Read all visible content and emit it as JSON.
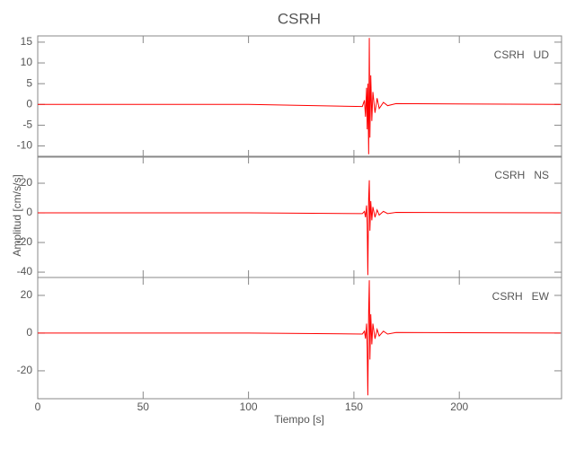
{
  "figure": {
    "title": "CSRH",
    "xlabel": "Tiempo [s]",
    "ylabel": "Amplitud [cm/s/s]",
    "xlim": [
      0,
      248.5
    ],
    "xticks": [
      0,
      50,
      100,
      150,
      200
    ]
  },
  "chart_data": [
    {
      "type": "line",
      "label": "CSRH   UD",
      "x": [
        0,
        100,
        154,
        155,
        155.5,
        156,
        156.3,
        156.6,
        157,
        157.3,
        157.6,
        158,
        158.5,
        159,
        160,
        161,
        162,
        164,
        166,
        170,
        248
      ],
      "series": [
        {
          "color": "#ff0000",
          "values": [
            0,
            0,
            -0.5,
            1,
            -3,
            4,
            -6,
            5,
            -12,
            16,
            -8,
            7,
            -4,
            3,
            -2,
            1.5,
            -1,
            0.5,
            -0.3,
            0.2,
            0
          ]
        }
      ],
      "ylim": [
        -12.7,
        16.5
      ],
      "yticks": [
        -10,
        -5,
        0,
        5,
        10,
        15
      ]
    },
    {
      "type": "line",
      "label": "CSRH   NS",
      "x": [
        0,
        100,
        154,
        155,
        155.5,
        156,
        156.3,
        156.6,
        157,
        157.3,
        157.6,
        158,
        158.5,
        159,
        160,
        161,
        162,
        164,
        166,
        170,
        248
      ],
      "series": [
        {
          "color": "#ff0000",
          "values": [
            0,
            0,
            -0.5,
            1,
            -3,
            5,
            -8,
            -42,
            10,
            22,
            -12,
            8,
            -5,
            4,
            -3,
            2,
            -1.5,
            1,
            -0.5,
            0.3,
            0
          ]
        }
      ],
      "ylim": [
        -43.6,
        38.2
      ],
      "yticks": [
        -40,
        -20,
        0,
        20
      ]
    },
    {
      "type": "line",
      "label": "CSRH   EW",
      "x": [
        0,
        100,
        154,
        155,
        155.5,
        156,
        156.3,
        156.6,
        157,
        157.3,
        157.6,
        158,
        158.5,
        159,
        160,
        161,
        162,
        164,
        166,
        170,
        248
      ],
      "series": [
        {
          "color": "#ff0000",
          "values": [
            0,
            0,
            -0.5,
            1,
            -3,
            5,
            -8,
            -33,
            12,
            28,
            -14,
            10,
            -6,
            5,
            -3,
            2,
            -1.5,
            1,
            -0.5,
            0.3,
            0
          ]
        }
      ],
      "ylim": [
        -34.8,
        29.5
      ],
      "yticks": [
        -20,
        0,
        20
      ]
    }
  ]
}
